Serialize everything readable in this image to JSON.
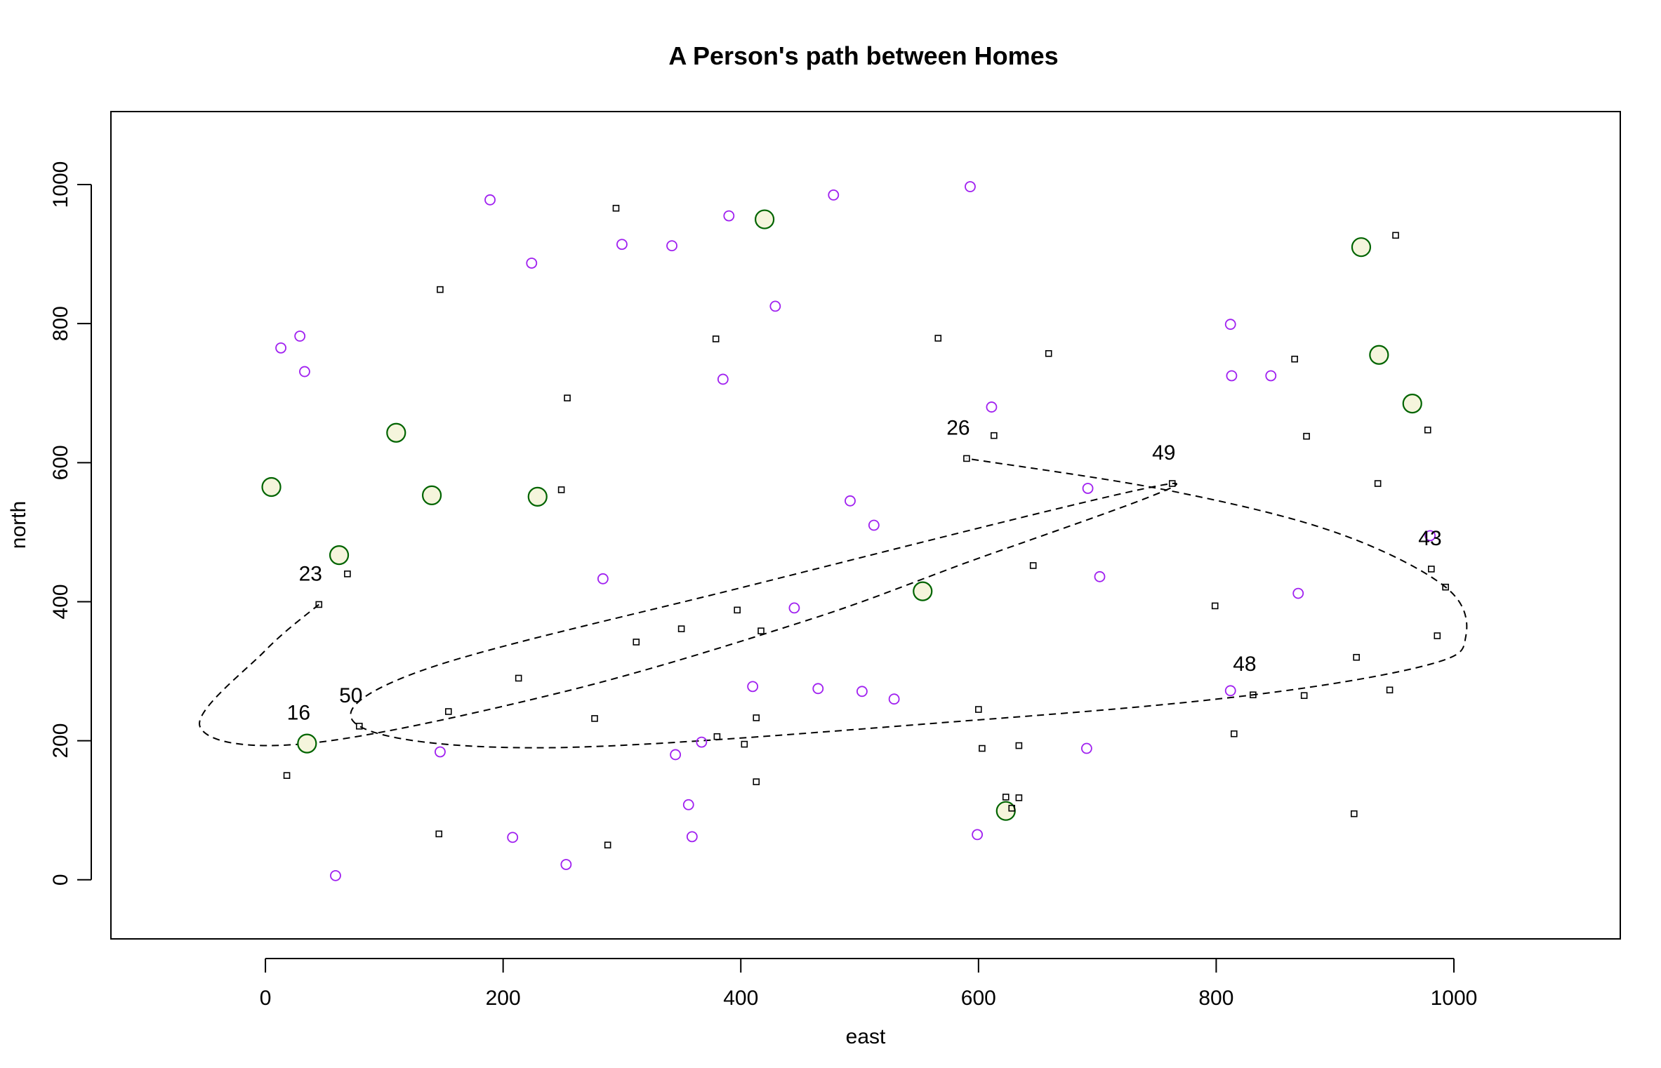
{
  "chart_data": {
    "type": "scatter",
    "title": "A Person's path between Homes",
    "xlabel": "east",
    "ylabel": "north",
    "xlim": [
      -130,
      1140
    ],
    "ylim": [
      -85,
      1105
    ],
    "xticks": [
      0,
      200,
      400,
      600,
      800,
      1000
    ],
    "yticks": [
      0,
      200,
      400,
      600,
      800,
      1000
    ],
    "grid": false,
    "legend": "none",
    "colors": {
      "homes_stroke": "#006400",
      "homes_fill": "#f5f5dc",
      "purple": "#a020f0",
      "squares": "#000000",
      "path": "#000000"
    },
    "series": [
      {
        "marker": "large-circle",
        "points": [
          [
            420,
            950
          ],
          [
            922,
            910
          ],
          [
            937,
            755
          ],
          [
            965,
            685
          ],
          [
            110,
            643
          ],
          [
            5,
            565
          ],
          [
            140,
            553
          ],
          [
            229,
            551
          ],
          [
            62,
            467
          ],
          [
            553,
            415
          ],
          [
            35,
            196
          ],
          [
            623,
            99
          ]
        ]
      },
      {
        "marker": "small-circle",
        "points": [
          [
            189,
            978
          ],
          [
            593,
            997
          ],
          [
            478,
            985
          ],
          [
            390,
            955
          ],
          [
            300,
            914
          ],
          [
            342,
            912
          ],
          [
            224,
            887
          ],
          [
            429,
            825
          ],
          [
            13,
            765
          ],
          [
            29,
            782
          ],
          [
            33,
            731
          ],
          [
            385,
            720
          ],
          [
            812,
            799
          ],
          [
            813,
            725
          ],
          [
            846,
            725
          ],
          [
            611,
            680
          ],
          [
            492,
            545
          ],
          [
            512,
            510
          ],
          [
            692,
            563
          ],
          [
            980,
            495
          ],
          [
            284,
            433
          ],
          [
            702,
            436
          ],
          [
            869,
            412
          ],
          [
            445,
            391
          ],
          [
            410,
            278
          ],
          [
            465,
            275
          ],
          [
            502,
            271
          ],
          [
            529,
            260
          ],
          [
            812,
            272
          ],
          [
            367,
            198
          ],
          [
            147,
            184
          ],
          [
            345,
            180
          ],
          [
            691,
            189
          ],
          [
            356,
            108
          ],
          [
            208,
            61
          ],
          [
            359,
            62
          ],
          [
            599,
            65
          ],
          [
            253,
            22
          ],
          [
            59,
            6
          ]
        ]
      },
      {
        "marker": "small-square",
        "points": [
          [
            295,
            966
          ],
          [
            951,
            927
          ],
          [
            147,
            849
          ],
          [
            379,
            778
          ],
          [
            566,
            779
          ],
          [
            659,
            757
          ],
          [
            866,
            749
          ],
          [
            254,
            693
          ],
          [
            978,
            647
          ],
          [
            876,
            638
          ],
          [
            613,
            639
          ],
          [
            590,
            606
          ],
          [
            763,
            570
          ],
          [
            936,
            570
          ],
          [
            249,
            561
          ],
          [
            646,
            452
          ],
          [
            69,
            440
          ],
          [
            981,
            447
          ],
          [
            45,
            396
          ],
          [
            993,
            421
          ],
          [
            799,
            394
          ],
          [
            397,
            388
          ],
          [
            350,
            361
          ],
          [
            417,
            358
          ],
          [
            312,
            342
          ],
          [
            986,
            351
          ],
          [
            918,
            320
          ],
          [
            213,
            290
          ],
          [
            946,
            273
          ],
          [
            831,
            266
          ],
          [
            874,
            265
          ],
          [
            600,
            245
          ],
          [
            154,
            242
          ],
          [
            413,
            233
          ],
          [
            277,
            232
          ],
          [
            79,
            221
          ],
          [
            380,
            206
          ],
          [
            815,
            210
          ],
          [
            403,
            195
          ],
          [
            634,
            193
          ],
          [
            603,
            189
          ],
          [
            18,
            150
          ],
          [
            413,
            141
          ],
          [
            623,
            119
          ],
          [
            634,
            118
          ],
          [
            628,
            103
          ],
          [
            916,
            95
          ],
          [
            146,
            66
          ],
          [
            288,
            50
          ]
        ]
      }
    ],
    "path": {
      "style": "dashed",
      "points": [
        [
          45,
          396
        ],
        [
          0,
          330
        ],
        [
          -55,
          220
        ],
        [
          35,
          196
        ],
        [
          250,
          270
        ],
        [
          450,
          370
        ],
        [
          580,
          450
        ],
        [
          763,
          570
        ],
        [
          400,
          420
        ],
        [
          130,
          300
        ],
        [
          79,
          221
        ],
        [
          240,
          190
        ],
        [
          600,
          230
        ],
        [
          831,
          266
        ],
        [
          980,
          310
        ],
        [
          1010,
          350
        ],
        [
          993,
          421
        ],
        [
          900,
          500
        ],
        [
          760,
          560
        ],
        [
          590,
          606
        ]
      ]
    },
    "annotations": [
      {
        "text": "26",
        "x": 590,
        "y": 606
      },
      {
        "text": "49",
        "x": 763,
        "y": 570
      },
      {
        "text": "43",
        "x": 987,
        "y": 447
      },
      {
        "text": "23",
        "x": 45,
        "y": 396
      },
      {
        "text": "48",
        "x": 831,
        "y": 266
      },
      {
        "text": "50",
        "x": 79,
        "y": 221
      },
      {
        "text": "16",
        "x": 35,
        "y": 196
      }
    ]
  }
}
